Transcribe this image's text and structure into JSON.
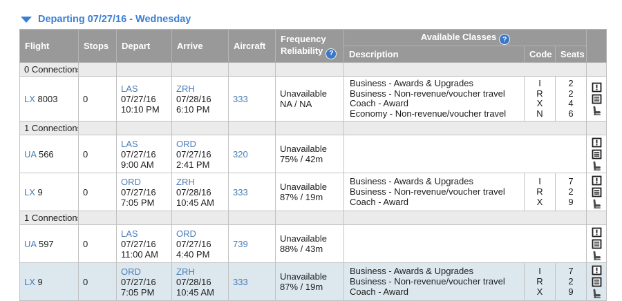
{
  "title": "Departing 07/27/16 - Wednesday",
  "colors": {
    "title_blue": "#3b7fd4",
    "link_blue": "#4a7db8",
    "header_bg": "#999999",
    "section_bg": "#ebebeb",
    "highlight_bg": "#dce8ee",
    "help_icon_bg": "#3b77c8"
  },
  "table": {
    "headers": {
      "flight": "Flight",
      "stops": "Stops",
      "depart": "Depart",
      "arrive": "Arrive",
      "aircraft": "Aircraft",
      "frequency_line1": "Frequency",
      "frequency_line2": "Reliability",
      "available_classes": "Available Classes",
      "description": "Description",
      "code": "Code",
      "seats": "Seats",
      "help_glyph": "?"
    },
    "row_icons": [
      "alert-icon",
      "notes-icon",
      "seat-icon"
    ],
    "rows": [
      {
        "type": "section",
        "label": "0 Connections"
      },
      {
        "type": "flight",
        "carrier": "LX",
        "flight_number": "8003",
        "stops": "0",
        "depart_airport": "LAS",
        "depart_date": "07/27/16",
        "depart_time": "10:10 PM",
        "arrive_airport": "ZRH",
        "arrive_date": "07/28/16",
        "arrive_time": "6:10 PM",
        "aircraft": "333",
        "reliability_status": "Unavailable",
        "reliability_value": "NA / NA",
        "highlighted": false,
        "classes": [
          {
            "description": "Business - Awards & Upgrades",
            "code": "I",
            "seats": "2"
          },
          {
            "description": "Business - Non-revenue/voucher travel",
            "code": "R",
            "seats": "2"
          },
          {
            "description": "Coach - Award",
            "code": "X",
            "seats": "4"
          },
          {
            "description": "Economy - Non-revenue/voucher travel",
            "code": "N",
            "seats": "6"
          }
        ]
      },
      {
        "type": "section",
        "label": "1 Connections"
      },
      {
        "type": "flight",
        "carrier": "UA",
        "flight_number": "566",
        "stops": "0",
        "depart_airport": "LAS",
        "depart_date": "07/27/16",
        "depart_time": "9:00 AM",
        "arrive_airport": "ORD",
        "arrive_date": "07/27/16",
        "arrive_time": "2:41 PM",
        "aircraft": "320",
        "reliability_status": "Unavailable",
        "reliability_value": "75% / 42m",
        "highlighted": false,
        "classes": []
      },
      {
        "type": "flight",
        "carrier": "LX",
        "flight_number": "9",
        "stops": "0",
        "depart_airport": "ORD",
        "depart_date": "07/27/16",
        "depart_time": "7:05 PM",
        "arrive_airport": "ZRH",
        "arrive_date": "07/28/16",
        "arrive_time": "10:45 AM",
        "aircraft": "333",
        "reliability_status": "Unavailable",
        "reliability_value": "87% / 19m",
        "highlighted": false,
        "classes": [
          {
            "description": "Business - Awards & Upgrades",
            "code": "I",
            "seats": "7"
          },
          {
            "description": "Business - Non-revenue/voucher travel",
            "code": "R",
            "seats": "2"
          },
          {
            "description": "Coach - Award",
            "code": "X",
            "seats": "9"
          }
        ]
      },
      {
        "type": "section",
        "label": "1 Connections"
      },
      {
        "type": "flight",
        "carrier": "UA",
        "flight_number": "597",
        "stops": "0",
        "depart_airport": "LAS",
        "depart_date": "07/27/16",
        "depart_time": "11:00 AM",
        "arrive_airport": "ORD",
        "arrive_date": "07/27/16",
        "arrive_time": "4:40 PM",
        "aircraft": "739",
        "reliability_status": "Unavailable",
        "reliability_value": "88% / 43m",
        "highlighted": false,
        "classes": []
      },
      {
        "type": "flight",
        "carrier": "LX",
        "flight_number": "9",
        "stops": "0",
        "depart_airport": "ORD",
        "depart_date": "07/27/16",
        "depart_time": "7:05 PM",
        "arrive_airport": "ZRH",
        "arrive_date": "07/28/16",
        "arrive_time": "10:45 AM",
        "aircraft": "333",
        "reliability_status": "Unavailable",
        "reliability_value": "87% / 19m",
        "highlighted": true,
        "classes": [
          {
            "description": "Business - Awards & Upgrades",
            "code": "I",
            "seats": "7"
          },
          {
            "description": "Business - Non-revenue/voucher travel",
            "code": "R",
            "seats": "2"
          },
          {
            "description": "Coach - Award",
            "code": "X",
            "seats": "9"
          }
        ]
      }
    ]
  }
}
